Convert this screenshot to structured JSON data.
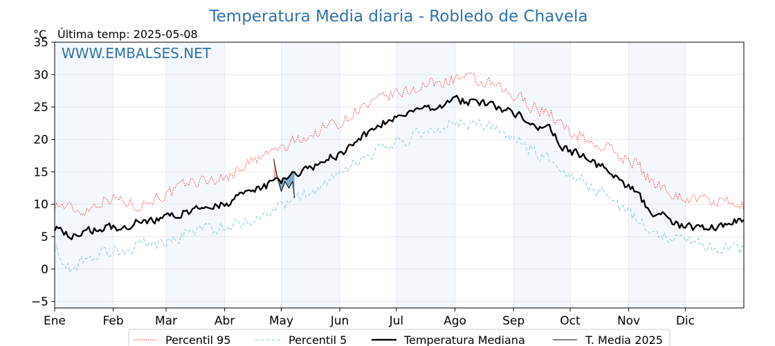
{
  "chart_data": {
    "type": "line",
    "title": "Temperatura Media diaria - Robledo de Chavela",
    "unit_label": "°C",
    "last_temp_label": "Última temp: 2025-05-08",
    "watermark": "WWW.EMBALSES.NET",
    "ylim": [
      -6,
      35
    ],
    "yticks": [
      -5,
      0,
      5,
      10,
      15,
      20,
      25,
      30,
      35
    ],
    "ytick_labels": [
      "−5",
      "0",
      "5",
      "10",
      "15",
      "20",
      "25",
      "30",
      "35"
    ],
    "month_labels": [
      "Ene",
      "Feb",
      "Mar",
      "Abr",
      "May",
      "Jun",
      "Jul",
      "Ago",
      "Sep",
      "Oct",
      "Nov",
      "Dic"
    ],
    "month_start_days": [
      1,
      32,
      60,
      91,
      121,
      152,
      182,
      213,
      244,
      274,
      305,
      335
    ],
    "xlim": [
      1,
      366
    ],
    "grid": true,
    "legend_position": "bottom",
    "series_keypoints": {
      "p95": [
        [
          1,
          10
        ],
        [
          15,
          9
        ],
        [
          30,
          11
        ],
        [
          45,
          10
        ],
        [
          60,
          11.5
        ],
        [
          75,
          13.5
        ],
        [
          90,
          14
        ],
        [
          105,
          16.5
        ],
        [
          120,
          18.5
        ],
        [
          135,
          20.5
        ],
        [
          150,
          22.5
        ],
        [
          165,
          25
        ],
        [
          182,
          27
        ],
        [
          200,
          28.5
        ],
        [
          215,
          29.5
        ],
        [
          230,
          28.5
        ],
        [
          245,
          26.5
        ],
        [
          260,
          24.5
        ],
        [
          275,
          21
        ],
        [
          290,
          19
        ],
        [
          305,
          17
        ],
        [
          320,
          13
        ],
        [
          335,
          11
        ],
        [
          350,
          10.5
        ],
        [
          366,
          9.5
        ]
      ],
      "p5": [
        [
          1,
          3.5
        ],
        [
          8,
          0
        ],
        [
          20,
          2
        ],
        [
          35,
          3
        ],
        [
          50,
          4
        ],
        [
          60,
          4
        ],
        [
          75,
          6
        ],
        [
          90,
          6.5
        ],
        [
          105,
          7.5
        ],
        [
          120,
          9.5
        ],
        [
          135,
          11.5
        ],
        [
          150,
          14
        ],
        [
          165,
          17
        ],
        [
          182,
          19.5
        ],
        [
          200,
          21.5
        ],
        [
          215,
          22.5
        ],
        [
          230,
          22
        ],
        [
          245,
          20
        ],
        [
          260,
          17.5
        ],
        [
          275,
          14.5
        ],
        [
          290,
          12
        ],
        [
          305,
          8.5
        ],
        [
          320,
          5.5
        ],
        [
          335,
          4.5
        ],
        [
          350,
          3.5
        ],
        [
          366,
          3
        ]
      ],
      "median": [
        [
          1,
          6.5
        ],
        [
          10,
          5
        ],
        [
          20,
          6
        ],
        [
          35,
          6.5
        ],
        [
          50,
          7.5
        ],
        [
          60,
          8
        ],
        [
          75,
          9
        ],
        [
          90,
          10
        ],
        [
          105,
          12
        ],
        [
          120,
          13.5
        ],
        [
          135,
          15.5
        ],
        [
          150,
          17.5
        ],
        [
          165,
          20.5
        ],
        [
          182,
          23.5
        ],
        [
          200,
          25
        ],
        [
          215,
          26
        ],
        [
          230,
          25.5
        ],
        [
          245,
          24
        ],
        [
          260,
          22
        ],
        [
          275,
          18
        ],
        [
          290,
          16
        ],
        [
          305,
          12.5
        ],
        [
          320,
          8.5
        ],
        [
          335,
          6.5
        ],
        [
          350,
          6.5
        ],
        [
          366,
          7.5
        ]
      ],
      "media_2025": [
        [
          117,
          17
        ],
        [
          119,
          14
        ],
        [
          121,
          12
        ],
        [
          123,
          13.5
        ],
        [
          125,
          12.5
        ],
        [
          127,
          13.5
        ],
        [
          128,
          11
        ]
      ]
    },
    "series": [
      {
        "name": "Percentil 95",
        "color": "#e8312d",
        "style": "dotted"
      },
      {
        "name": "Percentil 5",
        "color": "#a6d4e0",
        "style": "dashed"
      },
      {
        "name": "Temperatura Mediana",
        "color": "#000000",
        "style": "solid-thick"
      },
      {
        "name": "T. Media 2025",
        "color": "#000000",
        "style": "solid-thin"
      }
    ]
  }
}
